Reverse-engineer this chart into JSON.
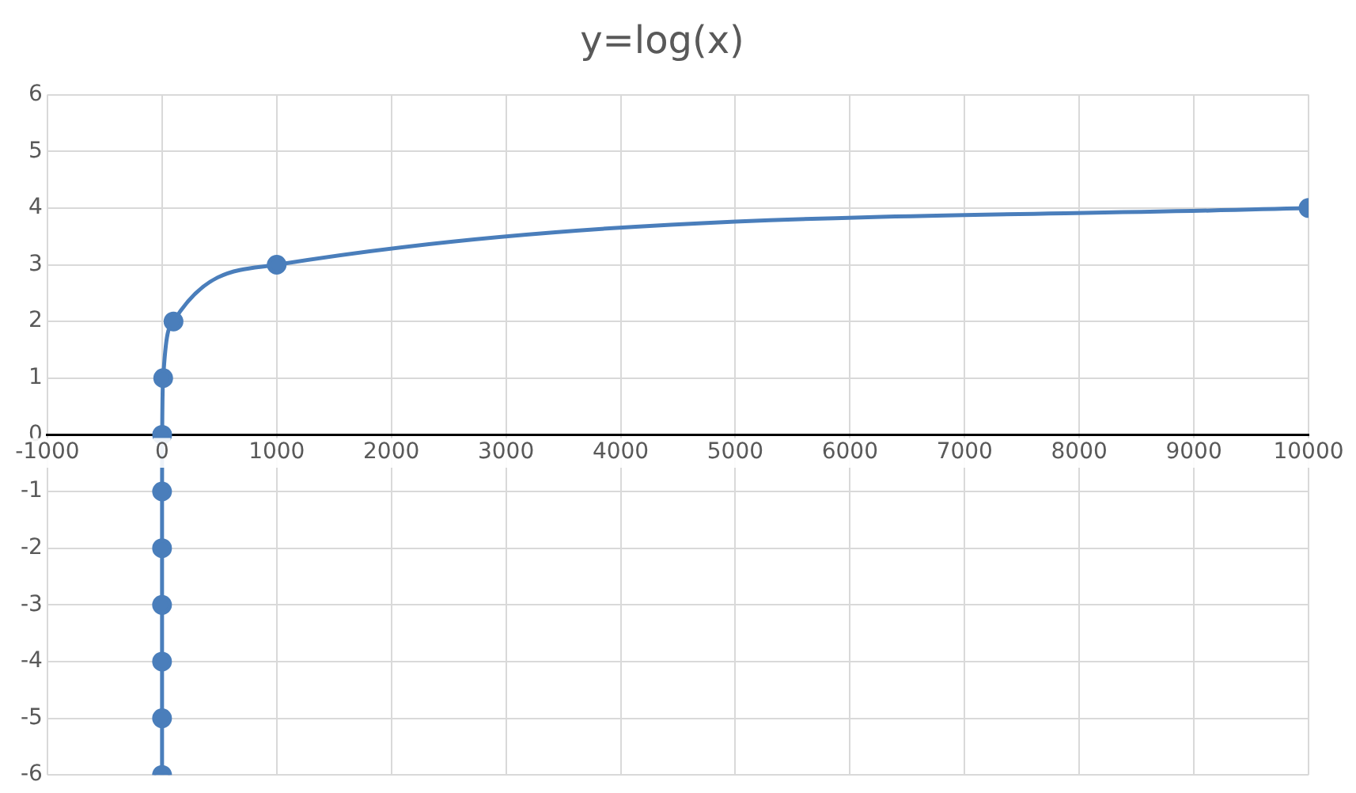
{
  "chart_data": {
    "type": "line",
    "title": "y=log(x)",
    "x": [
      1e-06,
      1e-05,
      0.0001,
      0.001,
      0.01,
      0.1,
      1,
      10,
      100,
      1000,
      10000
    ],
    "series": [
      {
        "color": "#4a7ebb",
        "values": [
          -6,
          -5,
          -4,
          -3,
          -2,
          -1,
          0,
          1,
          2,
          3,
          4
        ]
      }
    ],
    "xlim": [
      -1000,
      10000
    ],
    "xticks": [
      -1000,
      0,
      1000,
      2000,
      3000,
      4000,
      5000,
      6000,
      7000,
      8000,
      9000,
      10000
    ],
    "ylim": [
      -6,
      6
    ],
    "yticks": [
      -6,
      -5,
      -4,
      -3,
      -2,
      -1,
      0,
      1,
      2,
      3,
      4,
      5,
      6
    ],
    "grid": true,
    "marker": "circle",
    "line_style": "solid"
  }
}
